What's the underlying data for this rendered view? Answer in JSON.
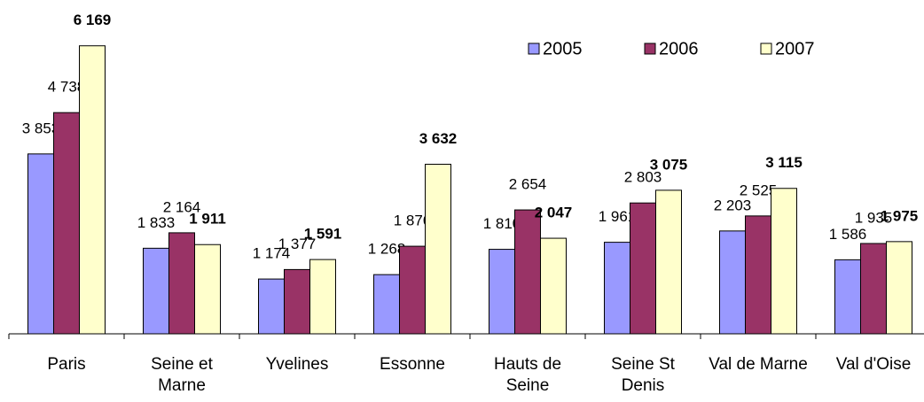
{
  "chart_data": {
    "type": "bar",
    "categories": [
      "Paris",
      "Seine et Marne",
      "Yvelines",
      "Essonne",
      "Hauts de Seine",
      "Seine St Denis",
      "Val de Marne",
      "Val d'Oise"
    ],
    "series": [
      {
        "name": "2005",
        "color": "#9999ff",
        "values": [
          3853,
          1833,
          1174,
          1268,
          1810,
          1961,
          2203,
          1586
        ],
        "value_labels": [
          "3 853",
          "1 833",
          "1 174",
          "1 268",
          "1 810",
          "1 961",
          "2 203",
          "1 586"
        ]
      },
      {
        "name": "2006",
        "color": "#993366",
        "values": [
          4738,
          2164,
          1377,
          1876,
          2654,
          2803,
          2525,
          1935
        ],
        "value_labels": [
          "4 738",
          "2 164",
          "1 377",
          "1 876",
          "2 654",
          "2 803",
          "2 525",
          "1 935"
        ]
      },
      {
        "name": "2007",
        "color": "#ffffcc",
        "values": [
          6169,
          1911,
          1591,
          3632,
          2047,
          3075,
          3115,
          1975
        ],
        "value_labels": [
          "6 169",
          "1 911",
          "1 591",
          "3 632",
          "2 047",
          "3 075",
          "3 115",
          "1 975"
        ]
      }
    ],
    "ylim": [
      0,
      7150
    ],
    "legend": "top-right"
  }
}
